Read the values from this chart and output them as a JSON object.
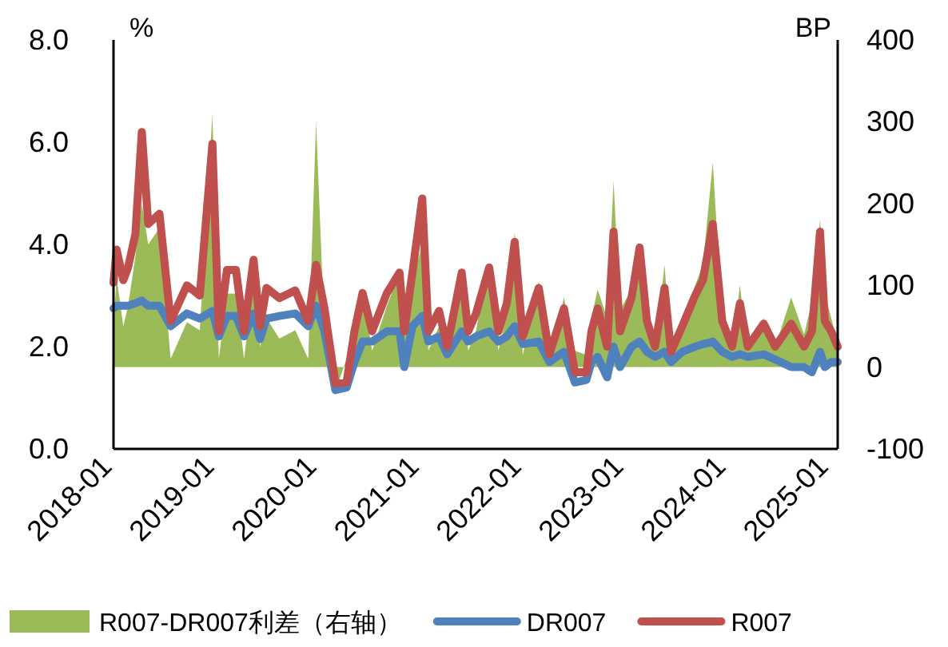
{
  "chart_data": {
    "type": "line",
    "ylabel": "%",
    "y2label": "BP",
    "legend": "bottom",
    "grid": false,
    "line_style": "solid",
    "marker": "none",
    "x": [
      "2018-01-01",
      "2018-01-12",
      "2018-02-05",
      "2018-02-22",
      "2018-03-20",
      "2018-04-12",
      "2018-05-05",
      "2018-06-14",
      "2018-07-24",
      "2018-09-20",
      "2018-11-05",
      "2018-12-20",
      "2019-01-12",
      "2019-02-10",
      "2019-03-14",
      "2019-04-12",
      "2019-05-16",
      "2019-06-08",
      "2019-07-01",
      "2019-08-16",
      "2019-10-12",
      "2019-11-27",
      "2019-12-25",
      "2020-01-24",
      "2020-03-03",
      "2020-04-12",
      "2020-05-10",
      "2020-06-08",
      "2020-07-12",
      "2020-09-03",
      "2020-10-18",
      "2020-11-04",
      "2020-12-03",
      "2021-01-07",
      "2021-01-29",
      "2021-03-08",
      "2021-04-06",
      "2021-05-28",
      "2021-06-20",
      "2021-07-18",
      "2021-09-03",
      "2021-10-06",
      "2021-11-05",
      "2021-12-03",
      "2022-01-01",
      "2022-02-27",
      "2022-04-06",
      "2022-05-28",
      "2022-07-06",
      "2022-08-16",
      "2022-09-03",
      "2022-09-25",
      "2022-10-29",
      "2022-11-21",
      "2022-12-14",
      "2023-01-24",
      "2023-02-22",
      "2023-03-20",
      "2023-04-18",
      "2023-05-22",
      "2023-06-14",
      "2023-07-24",
      "2023-09-08",
      "2023-10-06",
      "2023-11-10",
      "2023-12-14",
      "2024-01-18",
      "2024-02-15",
      "2024-03-14",
      "2024-05-10",
      "2024-06-20",
      "2024-08-16",
      "2024-10-01",
      "2024-10-29",
      "2024-11-27",
      "2024-12-14",
      "2025-01-06",
      "2025-01-29"
    ],
    "xlim": [
      "2018-01-01",
      "2025-01-29"
    ],
    "xticks": [
      {
        "value": "2018-01-01",
        "label": "2018-01"
      },
      {
        "value": "2019-01-01",
        "label": "2019-01"
      },
      {
        "value": "2020-01-01",
        "label": "2020-01"
      },
      {
        "value": "2021-01-01",
        "label": "2021-01"
      },
      {
        "value": "2022-01-01",
        "label": "2022-01"
      },
      {
        "value": "2023-01-01",
        "label": "2023-01"
      },
      {
        "value": "2024-01-01",
        "label": "2024-01"
      },
      {
        "value": "2025-01-01",
        "label": "2025-01"
      }
    ],
    "ylim": [
      0,
      8
    ],
    "yticks": [
      {
        "value": 0,
        "label": "0.0"
      },
      {
        "value": 2,
        "label": "2.0"
      },
      {
        "value": 4,
        "label": "4.0"
      },
      {
        "value": 6,
        "label": "6.0"
      },
      {
        "value": 8,
        "label": "8.0"
      }
    ],
    "y2lim": [
      -100,
      400
    ],
    "y2ticks": [
      -100,
      0,
      100,
      200,
      300,
      400
    ],
    "series": [
      {
        "name": "R007-DR007利差（右轴）",
        "type": "area",
        "axis": "y2",
        "color": "#9bbb59",
        "values": [
          50,
          110,
          50,
          75,
          135,
          200,
          150,
          170,
          10,
          55,
          45,
          310,
          10,
          90,
          90,
          10,
          105,
          25,
          60,
          35,
          45,
          10,
          300,
          45,
          -30,
          10,
          60,
          95,
          20,
          75,
          115,
          70,
          105,
          150,
          20,
          50,
          15,
          115,
          20,
          45,
          125,
          20,
          65,
          165,
          15,
          105,
          15,
          85,
          20,
          15,
          60,
          95,
          60,
          228,
          70,
          95,
          150,
          60,
          20,
          125,
          20,
          50,
          100,
          125,
          250,
          60,
          20,
          100,
          20,
          60,
          25,
          85,
          40,
          80,
          180,
          90,
          60,
          30
        ]
      },
      {
        "name": "DR007",
        "type": "line",
        "color": "#4f81bd",
        "values": [
          2.75,
          2.8,
          2.8,
          2.8,
          2.85,
          2.9,
          2.8,
          2.8,
          2.4,
          2.65,
          2.55,
          2.7,
          2.2,
          2.6,
          2.6,
          2.2,
          2.65,
          2.15,
          2.55,
          2.6,
          2.65,
          2.4,
          2.8,
          2.3,
          1.15,
          1.2,
          1.7,
          2.1,
          2.1,
          2.3,
          2.3,
          1.6,
          2.4,
          2.6,
          2.1,
          2.2,
          1.85,
          2.3,
          2.1,
          2.2,
          2.3,
          2.1,
          2.2,
          2.4,
          2.05,
          2.1,
          1.7,
          1.9,
          1.3,
          1.35,
          1.7,
          1.8,
          1.4,
          2.0,
          1.6,
          2.0,
          2.1,
          1.9,
          1.8,
          1.9,
          1.7,
          1.9,
          2.0,
          2.05,
          2.1,
          1.9,
          1.8,
          1.85,
          1.8,
          1.85,
          1.75,
          1.6,
          1.6,
          1.5,
          1.9,
          1.6,
          1.7,
          1.7
        ]
      },
      {
        "name": "R007",
        "type": "line",
        "color": "#c0504d",
        "values": [
          3.25,
          3.9,
          3.3,
          3.55,
          4.2,
          6.2,
          4.4,
          4.6,
          2.5,
          3.2,
          3.0,
          5.97,
          2.3,
          3.5,
          3.5,
          2.3,
          3.7,
          2.4,
          3.15,
          2.95,
          3.1,
          2.5,
          3.6,
          2.75,
          1.28,
          1.3,
          2.3,
          3.05,
          2.3,
          3.05,
          3.45,
          2.3,
          3.45,
          4.9,
          2.3,
          2.7,
          2.0,
          3.45,
          2.3,
          2.65,
          3.55,
          2.3,
          2.85,
          4.05,
          2.2,
          3.15,
          1.85,
          2.75,
          1.5,
          1.5,
          2.3,
          2.75,
          2.0,
          4.25,
          2.3,
          2.95,
          3.94,
          2.5,
          2.0,
          3.15,
          1.9,
          2.4,
          3.0,
          3.3,
          4.4,
          2.5,
          2.0,
          2.85,
          2.0,
          2.45,
          2.0,
          2.45,
          2.0,
          2.3,
          4.25,
          2.5,
          2.3,
          2.0
        ]
      }
    ]
  }
}
